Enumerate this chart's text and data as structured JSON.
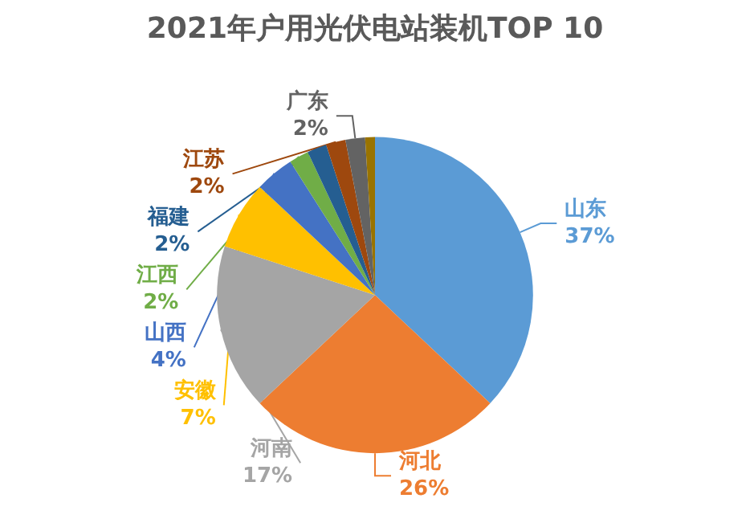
{
  "chart_data": {
    "type": "pie",
    "title": "2021年户用光伏电站装机TOP 10",
    "categories": [
      "山东",
      "河北",
      "河南",
      "安徽",
      "山西",
      "江西",
      "福建",
      "江苏",
      "广东",
      null
    ],
    "values": [
      37,
      26,
      17,
      7,
      4,
      2,
      2,
      2,
      2,
      1
    ],
    "colors": [
      "#5b9bd5",
      "#ed7d31",
      "#a5a5a5",
      "#ffc000",
      "#4472c4",
      "#70ad47",
      "#255e91",
      "#9e480e",
      "#636363",
      "#997300"
    ],
    "value_labels": [
      "37%",
      "26%",
      "17%",
      "7%",
      "4%",
      "2%",
      "2%",
      "2%",
      "2%",
      null
    ],
    "legend": false
  }
}
